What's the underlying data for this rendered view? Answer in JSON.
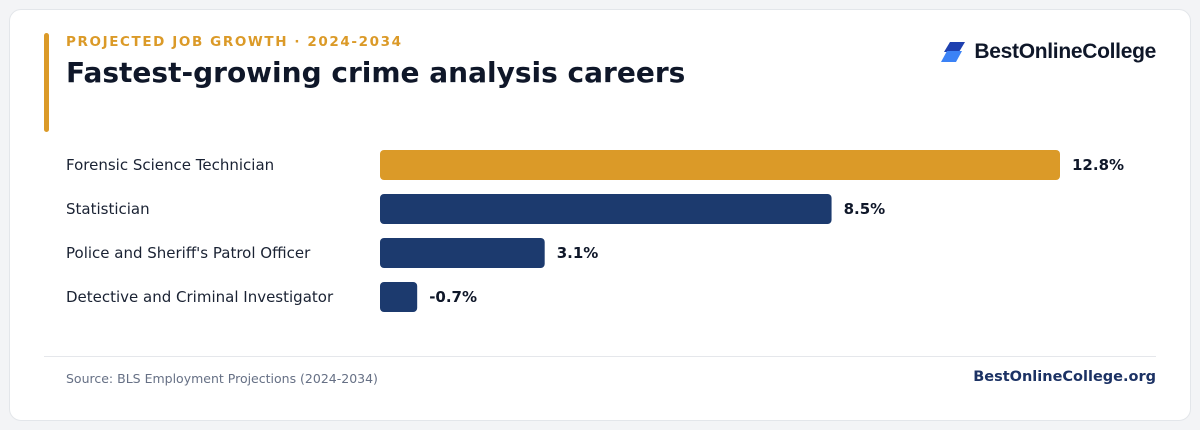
{
  "header": {
    "kicker": "PROJECTED JOB GROWTH · 2024-2034",
    "title": "Fastest-growing crime analysis careers"
  },
  "brand": {
    "name": "BestOnlineCollege",
    "icon": "stacked-parallelogram-logo-icon",
    "site": "BestOnlineCollege.org"
  },
  "footer": {
    "source": "Source: BLS Employment Projections (2024-2034)"
  },
  "colors": {
    "highlight": "#db9a28",
    "primary": "#1c3a6e",
    "logo_blue": "#2563eb"
  },
  "chart_data": {
    "type": "bar",
    "orientation": "horizontal",
    "title": "Fastest-growing crime analysis careers",
    "categories": [
      "Forensic Science Technician",
      "Statistician",
      "Police and Sheriff's Patrol Officer",
      "Detective and Criminal Investigator"
    ],
    "values": [
      12.8,
      8.5,
      3.1,
      -0.7
    ],
    "value_labels": [
      "12.8%",
      "8.5%",
      "3.1%",
      "-0.7%"
    ],
    "highlight_index": 0,
    "unit": "%",
    "grid": false,
    "legend": "none"
  }
}
